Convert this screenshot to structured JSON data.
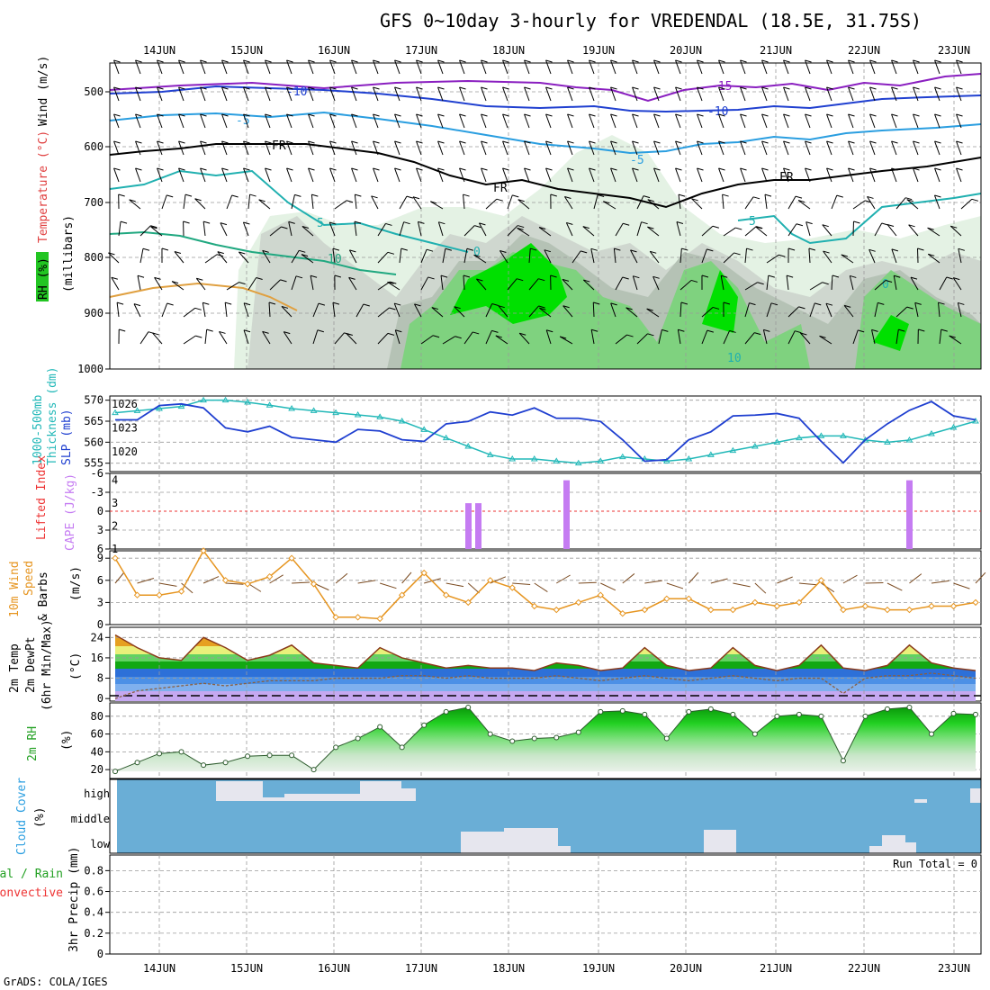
{
  "title": "GFS 0~10day 3-hourly for VREDENDAL (18.5E, 31.75S)",
  "footer": "GrADS: COLA/IGES",
  "dates": [
    "14JUN",
    "15JUN",
    "16JUN",
    "17JUN",
    "18JUN",
    "19JUN",
    "20JUN",
    "21JUN",
    "22JUN",
    "23JUN"
  ],
  "colors": {
    "rh_green": "#22c522",
    "slp": "#1f3fd0",
    "thickness": "#22b8b8",
    "cape": "#c57cf2",
    "lifted": "#e33",
    "wind10": "#e69520",
    "temp_fill_hot": "#e6a020",
    "cloud_bg": "#6aaed6",
    "cloud_cover": "#e6e6ee"
  },
  "panel_upper": {
    "ylabel_rh": "RH (%)",
    "ylabel_temp": "Temperature (°C)",
    "ylabel_wind": "Wind (m/s)",
    "ylabel_unit": "(millibars)",
    "levels": [
      "500",
      "600",
      "700",
      "800",
      "900",
      "1000"
    ],
    "contour_labels": [
      "-15",
      "-10",
      "-10",
      "-5",
      "-5",
      "FR",
      "FR",
      "FR",
      "5",
      "5",
      "0",
      "0",
      "-10",
      "10",
      "10"
    ]
  },
  "panel_slp": {
    "ylabel_a": "1000-500mb",
    "ylabel_b": "Thickness (dm)",
    "ylabel_c": "SLP (mb)",
    "left_ticks": [
      "570",
      "565",
      "560",
      "555"
    ],
    "right_ticks": [
      "1026",
      "1023",
      "1020"
    ]
  },
  "panel_cape": {
    "ylabel_a": "Lifted Index",
    "ylabel_b": "CAPE (J/kg)",
    "left_ticks": [
      "-6",
      "-3",
      "0",
      "3",
      "6"
    ],
    "right_ticks": [
      "4",
      "3",
      "2",
      "1"
    ]
  },
  "panel_wind": {
    "ylabel_a": "10m Wind",
    "ylabel_b": "Speed",
    "ylabel_c": "& Barbs",
    "ylabel_unit": "(m/s)",
    "ticks": [
      "9",
      "6",
      "3",
      "0"
    ]
  },
  "panel_temp": {
    "ylabel_a": "2m Temp",
    "ylabel_b": "2m DewPt",
    "ylabel_c": "(6hr Min/Max)",
    "ylabel_unit": "(°C)",
    "ticks": [
      "24",
      "16",
      "8",
      "0"
    ]
  },
  "panel_rh": {
    "ylabel": "2m RH",
    "ylabel_unit": "(%)",
    "ticks": [
      "80",
      "60",
      "40",
      "20"
    ]
  },
  "panel_cloud": {
    "ylabel": "Cloud Cover",
    "ylabel_unit": "(%)",
    "levels": [
      "high",
      "middle",
      "low"
    ]
  },
  "panel_precip": {
    "ylabel_a": "Total / Rain",
    "ylabel_b": "Convective",
    "ylabel_unit": "3hr Precip (mm)",
    "ticks": [
      "0.8",
      "0.6",
      "0.4",
      "0.2",
      "0"
    ],
    "run_total": "Run Total = 0"
  },
  "chart_data": [
    {
      "type": "line",
      "title": "SLP (mb) and 1000-500mb Thickness (dm)",
      "x": [
        "13/12",
        "13/18",
        "14/00",
        "14/06",
        "14/12",
        "14/18",
        "15/00",
        "15/06",
        "15/12",
        "15/18",
        "16/00",
        "16/06",
        "16/12",
        "16/18",
        "17/00",
        "17/06",
        "17/12",
        "17/18",
        "18/00",
        "18/06",
        "18/12",
        "18/18",
        "19/00",
        "19/06",
        "19/12",
        "19/18",
        "20/00",
        "20/06",
        "20/12",
        "20/18",
        "21/00",
        "21/06",
        "21/12",
        "21/18",
        "22/00",
        "22/06",
        "22/12",
        "22/18",
        "23/00",
        "23/06"
      ],
      "series": [
        {
          "name": "SLP (mb)",
          "values": [
            1024,
            1024,
            1025.8,
            1026,
            1025.5,
            1023,
            1022.5,
            1023.2,
            1021.8,
            1021.5,
            1021.2,
            1022.8,
            1022.6,
            1021.5,
            1021.3,
            1023.5,
            1023.8,
            1025,
            1024.6,
            1025.5,
            1024.2,
            1024.2,
            1023.8,
            1021.5,
            1018.8,
            1019,
            1021.5,
            1022.5,
            1024.5,
            1024.6,
            1024.8,
            1024.2,
            1021.3,
            1018.6,
            1021.5,
            1023.5,
            1025.2,
            1026.3,
            1024.5,
            1024
          ]
        },
        {
          "name": "Thickness (dm)",
          "values": [
            567,
            567.5,
            568,
            568.5,
            570,
            570,
            569.5,
            568.8,
            568,
            567.5,
            567,
            566.5,
            566,
            565,
            563,
            561,
            559,
            557,
            556,
            556,
            555.5,
            555,
            555.5,
            556.5,
            556,
            555.5,
            556,
            557,
            558,
            559,
            560,
            561,
            561.5,
            561.5,
            560.5,
            560,
            560.5,
            562,
            563.5,
            565
          ]
        }
      ],
      "ylim_left": [
        553,
        571
      ],
      "ylim_right": [
        1017.5,
        1027
      ]
    },
    {
      "type": "bar",
      "title": "CAPE (J/kg)",
      "x": [
        "17/12",
        "17/15",
        "18/15",
        "22/12"
      ],
      "values": [
        3,
        3,
        4,
        4
      ],
      "ylim": [
        1,
        4.3
      ]
    },
    {
      "type": "line",
      "title": "10m Wind Speed (m/s)",
      "x": [
        "13/12",
        "13/18",
        "14/00",
        "14/06",
        "14/12",
        "14/18",
        "15/00",
        "15/06",
        "15/12",
        "15/18",
        "16/00",
        "16/06",
        "16/12",
        "16/18",
        "17/00",
        "17/06",
        "17/12",
        "17/18",
        "18/00",
        "18/06",
        "18/12",
        "18/18",
        "19/00",
        "19/06",
        "19/12",
        "19/18",
        "20/00",
        "20/06",
        "20/12",
        "20/18",
        "21/00",
        "21/06",
        "21/12",
        "21/18",
        "22/00",
        "22/06",
        "22/12",
        "22/18",
        "23/00",
        "23/06"
      ],
      "values": [
        9,
        4,
        4,
        4.5,
        10,
        6,
        5.5,
        6.5,
        9,
        5.5,
        1,
        1,
        0.8,
        4,
        7,
        4,
        3,
        6,
        5,
        2.5,
        2,
        3,
        4,
        1.5,
        2,
        3.5,
        3.5,
        2,
        2,
        3,
        2.5,
        3,
        6,
        2,
        2.5,
        2,
        2,
        2.5,
        2.5,
        3
      ],
      "ylim": [
        0,
        10
      ]
    },
    {
      "type": "area",
      "title": "2m Temp / 2m DewPt (°C)",
      "x": [
        "13/12",
        "13/18",
        "14/00",
        "14/06",
        "14/12",
        "14/18",
        "15/00",
        "15/06",
        "15/12",
        "15/18",
        "16/00",
        "16/06",
        "16/12",
        "16/18",
        "17/00",
        "17/06",
        "17/12",
        "17/18",
        "18/00",
        "18/06",
        "18/12",
        "18/18",
        "19/00",
        "19/06",
        "19/12",
        "19/18",
        "20/00",
        "20/06",
        "20/12",
        "20/18",
        "21/00",
        "21/06",
        "21/12",
        "21/18",
        "22/00",
        "22/06",
        "22/12",
        "22/18",
        "23/00",
        "23/06"
      ],
      "series": [
        {
          "name": "2m Temp",
          "values": [
            25,
            20,
            16,
            15,
            24,
            20,
            15,
            17,
            21,
            14,
            13,
            12,
            20,
            16,
            14,
            12,
            13,
            12,
            12,
            11,
            14,
            13,
            11,
            12,
            20,
            13,
            11,
            12,
            20,
            13,
            11,
            13,
            21,
            12,
            11,
            13,
            21,
            14,
            12,
            11
          ]
        },
        {
          "name": "2m DewPt",
          "values": [
            0,
            3,
            4,
            5,
            6,
            5,
            6,
            7,
            7,
            7,
            8,
            8,
            8,
            9,
            9,
            8,
            9,
            8,
            8,
            8,
            9,
            8,
            7,
            8,
            9,
            8,
            7,
            8,
            9,
            8,
            7,
            8,
            8,
            2,
            8,
            9,
            9,
            10,
            9,
            8
          ]
        }
      ],
      "ylim": [
        -1,
        28
      ]
    },
    {
      "type": "area",
      "title": "2m RH (%)",
      "x": [
        "13/12",
        "13/18",
        "14/00",
        "14/06",
        "14/12",
        "14/18",
        "15/00",
        "15/06",
        "15/12",
        "15/18",
        "16/00",
        "16/06",
        "16/12",
        "16/18",
        "17/00",
        "17/06",
        "17/12",
        "17/18",
        "18/00",
        "18/06",
        "18/12",
        "18/18",
        "19/00",
        "19/06",
        "19/12",
        "19/18",
        "20/00",
        "20/06",
        "20/12",
        "20/18",
        "21/00",
        "21/06",
        "21/12",
        "21/18",
        "22/00",
        "22/06",
        "22/12",
        "22/18",
        "23/00",
        "23/06"
      ],
      "values": [
        18,
        28,
        38,
        40,
        25,
        28,
        35,
        36,
        36,
        20,
        45,
        55,
        68,
        45,
        70,
        85,
        90,
        60,
        52,
        55,
        56,
        62,
        85,
        86,
        82,
        55,
        85,
        88,
        82,
        60,
        80,
        82,
        80,
        30,
        80,
        88,
        90,
        60,
        83,
        82
      ],
      "ylim": [
        10,
        95
      ]
    }
  ]
}
